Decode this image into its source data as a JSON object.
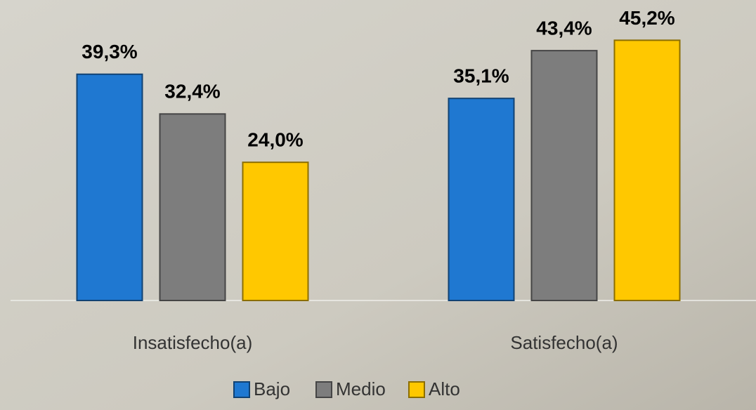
{
  "chart_data": {
    "type": "bar",
    "categories": [
      "Insatisfecho(a)",
      "Satisfecho(a)"
    ],
    "series": [
      {
        "name": "Bajo",
        "color": "#1f78d1",
        "values": [
          39.3,
          35.1
        ],
        "value_labels": [
          "39,3%",
          "35,1%"
        ]
      },
      {
        "name": "Medio",
        "color": "#7d7d7d",
        "values": [
          32.4,
          43.4
        ],
        "value_labels": [
          "32,4%",
          "43,4%"
        ]
      },
      {
        "name": "Alto",
        "color": "#ffc800",
        "values": [
          24.0,
          45.2
        ],
        "value_labels": [
          "24,0%",
          "45,2%"
        ]
      }
    ]
  }
}
